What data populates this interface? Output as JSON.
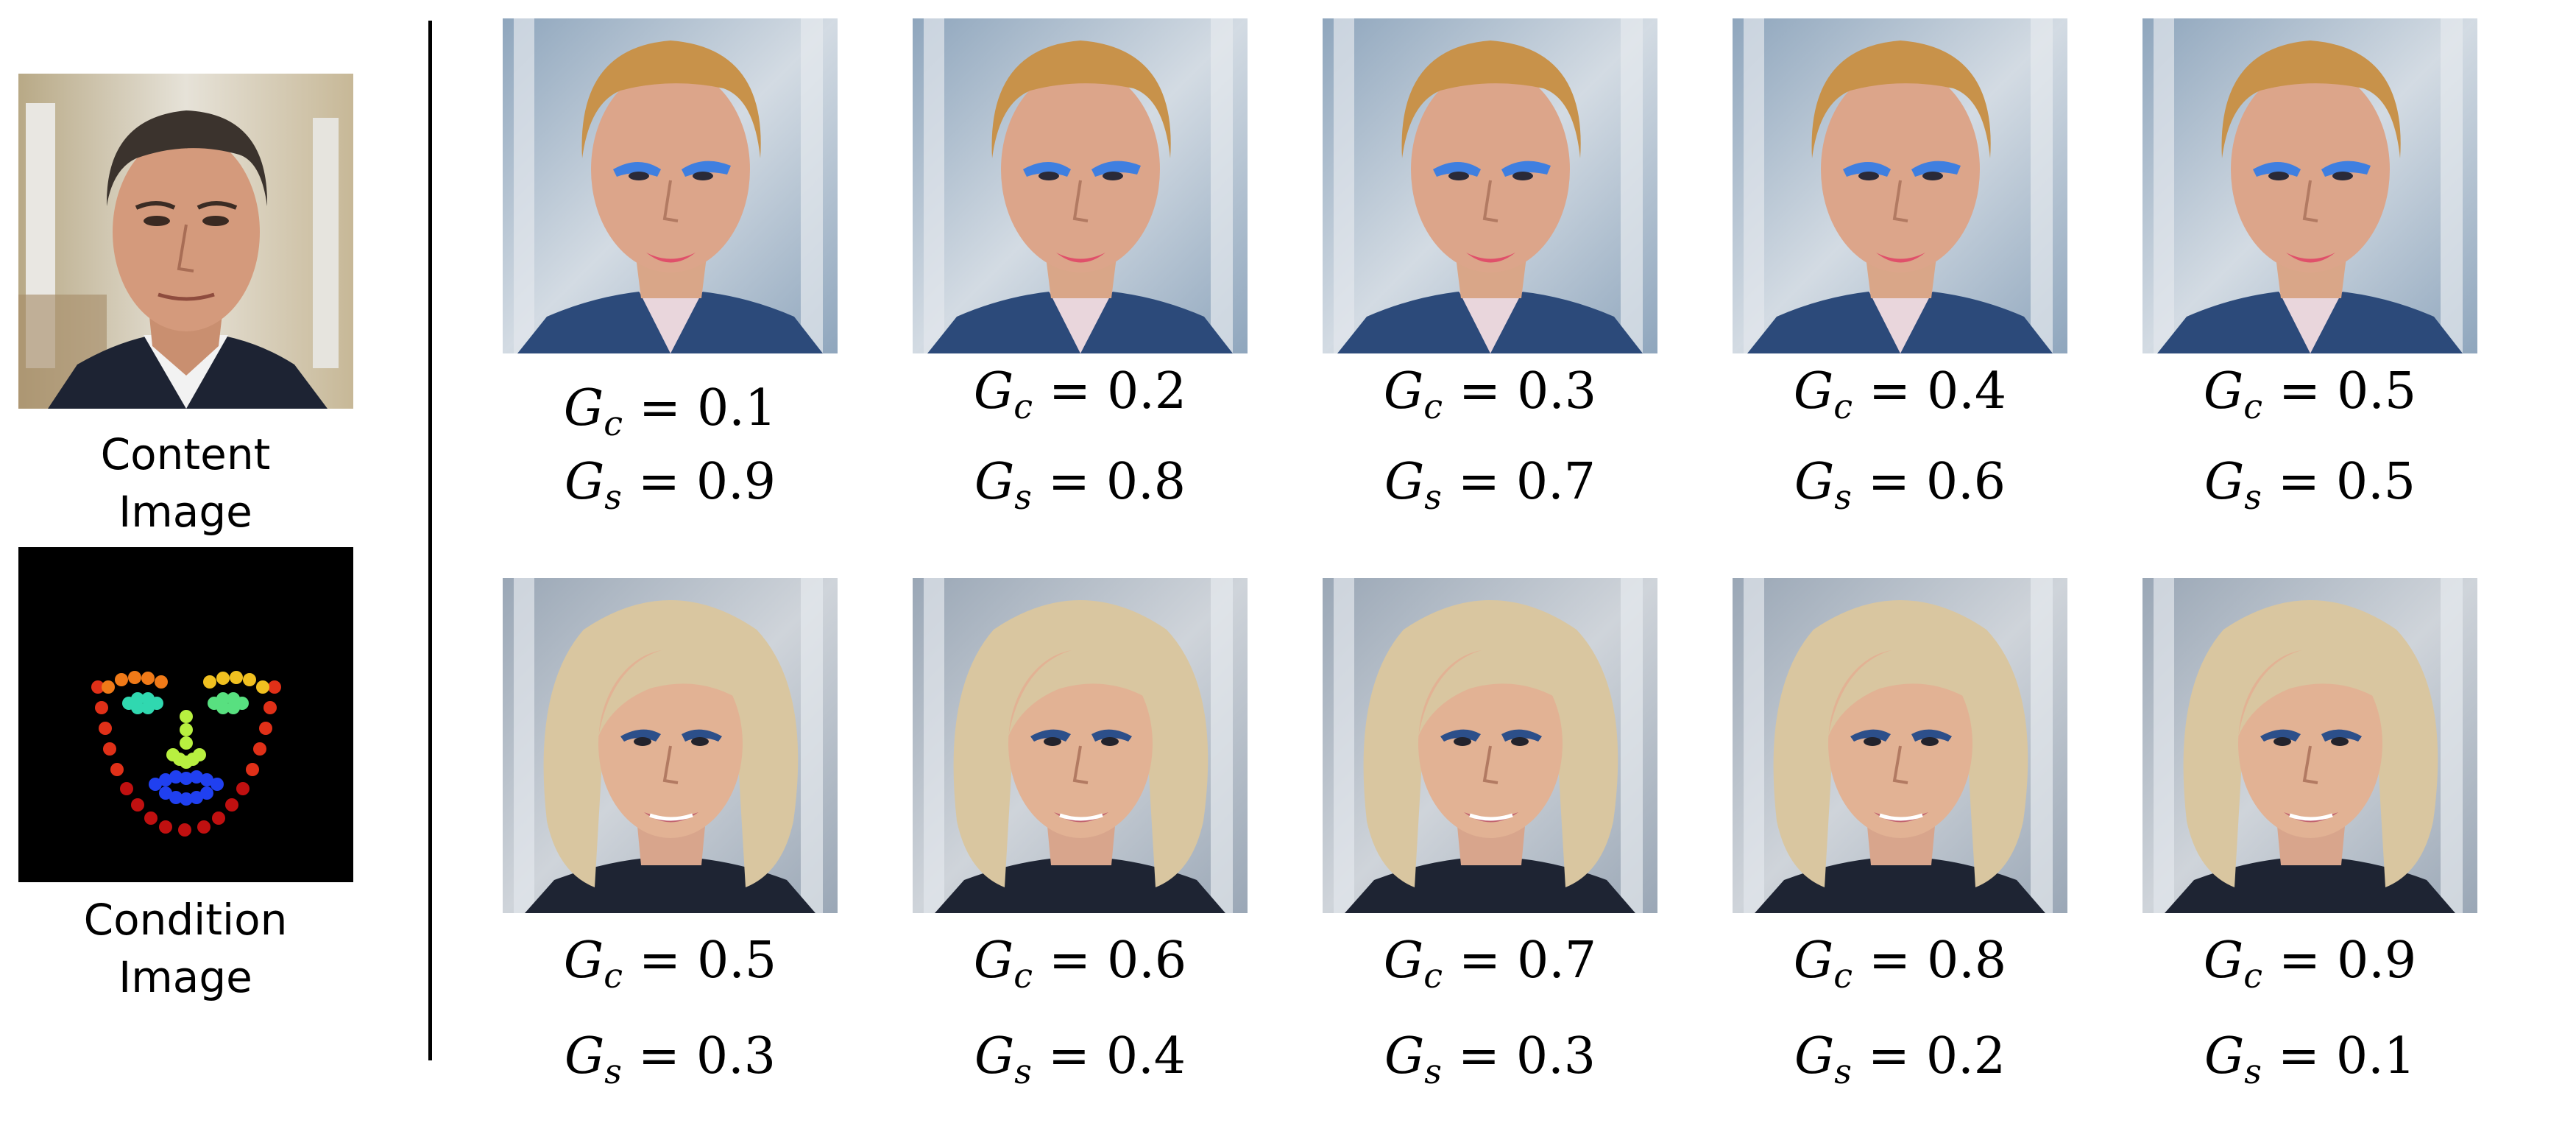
{
  "left_panel": {
    "content_caption": [
      "Content",
      "Image"
    ],
    "condition_caption": [
      "Condition",
      "Image"
    ]
  },
  "grid": {
    "variable_content": "G",
    "subscript_content": "c",
    "variable_style": "G",
    "subscript_style": "s",
    "operator": "=",
    "rows": [
      {
        "image_subject": "male-face-with-blue-eyeshadow",
        "items": [
          {
            "gc": "0.1",
            "gs": "0.9"
          },
          {
            "gc": "0.2",
            "gs": "0.8"
          },
          {
            "gc": "0.3",
            "gs": "0.7"
          },
          {
            "gc": "0.4",
            "gs": "0.6"
          },
          {
            "gc": "0.5",
            "gs": "0.5"
          }
        ]
      },
      {
        "image_subject": "blonde-female-face",
        "items": [
          {
            "gc": "0.5",
            "gs": "0.3"
          },
          {
            "gc": "0.6",
            "gs": "0.4"
          },
          {
            "gc": "0.7",
            "gs": "0.3"
          },
          {
            "gc": "0.8",
            "gs": "0.2"
          },
          {
            "gc": "0.9",
            "gs": "0.1"
          }
        ]
      }
    ]
  },
  "colors": {
    "blue_eyeshadow": "#3f7fe0",
    "lipstick": "#e0506a",
    "blonde_hair": "#d9c6a0",
    "orange_hair": "#c8924a",
    "skin": "#d9a688",
    "condition_bg": "#000000"
  }
}
